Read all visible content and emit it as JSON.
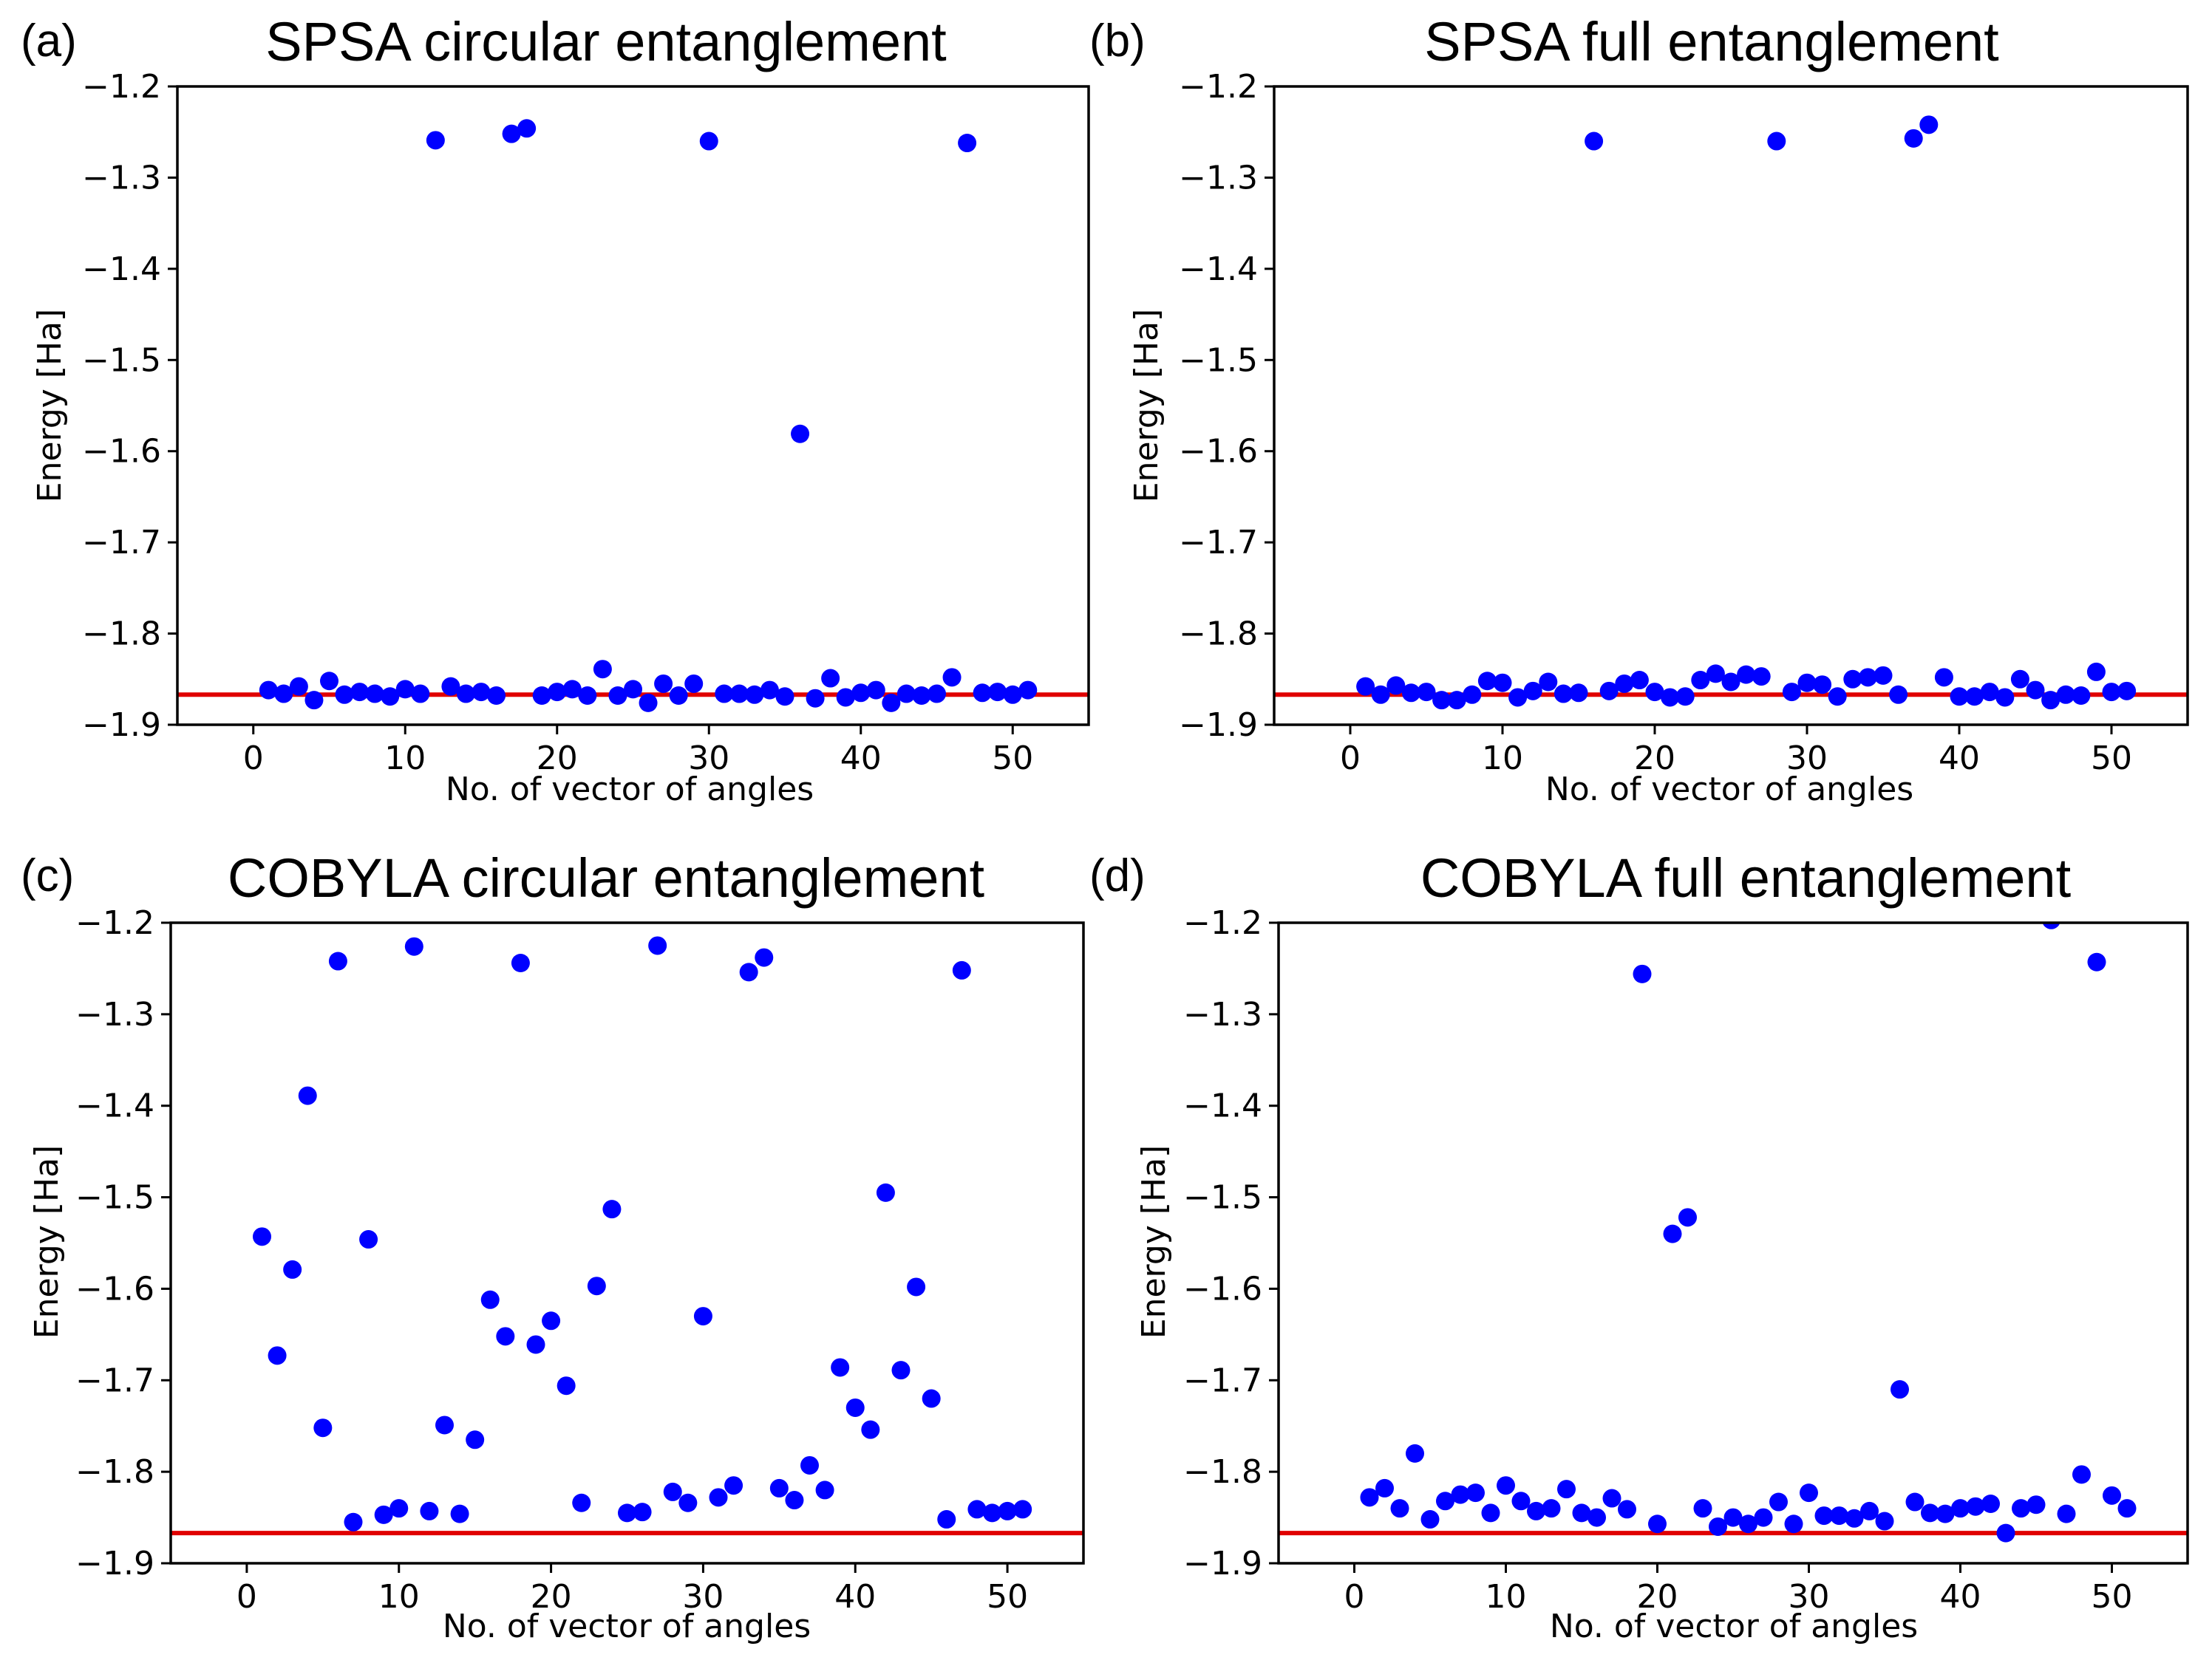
{
  "colors": {
    "points": "#0000ff",
    "reference_line": "#e00000",
    "axes": "#000000"
  },
  "chart_data": [
    {
      "type": "scatter",
      "panel_label": "(a)",
      "title": "SPSA circular entanglement",
      "xlabel": "No. of vector of angles",
      "ylabel": "Energy [Ha]",
      "xlim": [
        -5,
        55
      ],
      "ylim": [
        -1.9,
        -1.2
      ],
      "xticks": [
        0,
        10,
        20,
        30,
        40,
        50
      ],
      "yticks": [
        -1.9,
        -1.8,
        -1.7,
        -1.6,
        -1.5,
        -1.4,
        -1.3,
        -1.2
      ],
      "reference_line": -1.867,
      "x": [
        1,
        2,
        3,
        4,
        5,
        6,
        7,
        8,
        9,
        10,
        11,
        12,
        13,
        14,
        15,
        16,
        17,
        18,
        19,
        20,
        21,
        22,
        23,
        24,
        25,
        26,
        27,
        28,
        29,
        30,
        31,
        32,
        33,
        34,
        35,
        36,
        37,
        38,
        39,
        40,
        41,
        42,
        43,
        44,
        45,
        46,
        47,
        48,
        49,
        50,
        51
      ],
      "y": [
        -1.862,
        -1.866,
        -1.858,
        -1.873,
        -1.852,
        -1.867,
        -1.864,
        -1.866,
        -1.869,
        -1.861,
        -1.866,
        -1.259,
        -1.858,
        -1.866,
        -1.864,
        -1.868,
        -1.252,
        -1.246,
        -1.868,
        -1.864,
        -1.861,
        -1.868,
        -1.839,
        -1.868,
        -1.861,
        -1.876,
        -1.855,
        -1.868,
        -1.855,
        -1.26,
        -1.866,
        -1.866,
        -1.867,
        -1.862,
        -1.869,
        -1.581,
        -1.871,
        -1.849,
        -1.87,
        -1.865,
        -1.862,
        -1.876,
        -1.866,
        -1.868,
        -1.866,
        -1.848,
        -1.262,
        -1.865,
        -1.864,
        -1.867,
        -1.862
      ]
    },
    {
      "type": "scatter",
      "panel_label": "(b)",
      "title": "SPSA full entanglement",
      "xlabel": "No. of vector of angles",
      "ylabel": "Energy [Ha]",
      "xlim": [
        -5,
        55
      ],
      "ylim": [
        -1.9,
        -1.2
      ],
      "xticks": [
        0,
        10,
        20,
        30,
        40,
        50
      ],
      "yticks": [
        -1.9,
        -1.8,
        -1.7,
        -1.6,
        -1.5,
        -1.4,
        -1.3,
        -1.2
      ],
      "reference_line": -1.867,
      "x": [
        1,
        2,
        3,
        4,
        5,
        6,
        7,
        8,
        9,
        10,
        11,
        12,
        13,
        14,
        15,
        16,
        17,
        18,
        19,
        20,
        21,
        22,
        23,
        24,
        25,
        26,
        27,
        28,
        29,
        30,
        31,
        32,
        33,
        34,
        35,
        36,
        37,
        38,
        39,
        40,
        41,
        42,
        43,
        44,
        45,
        46,
        47,
        48,
        49,
        50,
        51
      ],
      "y": [
        -1.858,
        -1.867,
        -1.857,
        -1.865,
        -1.864,
        -1.873,
        -1.873,
        -1.867,
        -1.852,
        -1.854,
        -1.87,
        -1.863,
        -1.853,
        -1.866,
        -1.865,
        -1.26,
        -1.863,
        -1.855,
        -1.851,
        -1.864,
        -1.87,
        -1.869,
        -1.851,
        -1.844,
        -1.853,
        -1.845,
        -1.847,
        -1.26,
        -1.864,
        -1.854,
        -1.856,
        -1.869,
        -1.85,
        -1.848,
        -1.846,
        -1.867,
        -1.257,
        -1.242,
        -1.848,
        -1.869,
        -1.869,
        -1.864,
        -1.87,
        -1.85,
        -1.862,
        -1.873,
        -1.867,
        -1.868,
        -1.842,
        -1.864,
        -1.863
      ]
    },
    {
      "type": "scatter",
      "panel_label": "(c)",
      "title": "COBYLA circular entanglement",
      "xlabel": "No. of vector of angles",
      "ylabel": "Energy [Ha]",
      "xlim": [
        -5,
        55
      ],
      "ylim": [
        -1.9,
        -1.2
      ],
      "xticks": [
        0,
        10,
        20,
        30,
        40,
        50
      ],
      "yticks": [
        -1.9,
        -1.8,
        -1.7,
        -1.6,
        -1.5,
        -1.4,
        -1.3,
        -1.2
      ],
      "reference_line": -1.867,
      "x": [
        1,
        2,
        3,
        4,
        5,
        6,
        7,
        8,
        9,
        10,
        11,
        12,
        13,
        14,
        15,
        16,
        17,
        18,
        19,
        20,
        21,
        22,
        23,
        24,
        25,
        26,
        27,
        28,
        29,
        30,
        31,
        32,
        33,
        34,
        35,
        36,
        37,
        38,
        39,
        40,
        41,
        42,
        43,
        44,
        45,
        46,
        47,
        48,
        49,
        50,
        51
      ],
      "y": [
        -1.543,
        -1.673,
        -1.579,
        -1.389,
        -1.752,
        -1.242,
        -1.855,
        -1.546,
        -1.847,
        -1.84,
        -1.226,
        -1.843,
        -1.749,
        -1.846,
        -1.765,
        -1.612,
        -1.652,
        -1.244,
        -1.661,
        -1.635,
        -1.706,
        -1.834,
        -1.597,
        -1.513,
        -1.845,
        -1.844,
        -1.225,
        -1.822,
        -1.834,
        -1.63,
        -1.828,
        -1.815,
        -1.254,
        -1.238,
        -1.818,
        -1.831,
        -1.793,
        -1.82,
        -1.686,
        -1.73,
        -1.754,
        -1.495,
        -1.689,
        -1.598,
        -1.72,
        -1.852,
        -1.252,
        -1.841,
        -1.845,
        -1.843,
        -1.841
      ]
    },
    {
      "type": "scatter",
      "panel_label": "(d)",
      "title": "COBYLA full entanglement",
      "xlabel": "No. of vector of angles",
      "ylabel": "Energy [Ha]",
      "xlim": [
        -5,
        55
      ],
      "ylim": [
        -1.9,
        -1.2
      ],
      "xticks": [
        0,
        10,
        20,
        30,
        40,
        50
      ],
      "yticks": [
        -1.9,
        -1.8,
        -1.7,
        -1.6,
        -1.5,
        -1.4,
        -1.3,
        -1.2
      ],
      "reference_line": -1.867,
      "x": [
        1,
        2,
        3,
        4,
        5,
        6,
        7,
        8,
        9,
        10,
        11,
        12,
        13,
        14,
        15,
        16,
        17,
        18,
        19,
        20,
        21,
        22,
        23,
        24,
        25,
        26,
        27,
        28,
        29,
        30,
        31,
        32,
        33,
        34,
        35,
        36,
        37,
        38,
        39,
        40,
        41,
        42,
        43,
        44,
        45,
        46,
        47,
        48,
        49,
        50,
        51
      ],
      "y": [
        -1.828,
        -1.818,
        -1.84,
        -1.78,
        -1.852,
        -1.832,
        -1.825,
        -1.823,
        -1.845,
        -1.815,
        -1.832,
        -1.843,
        -1.84,
        -1.819,
        -1.845,
        -1.85,
        -1.829,
        -1.841,
        -1.256,
        -1.857,
        -1.54,
        -1.522,
        -1.84,
        -1.86,
        -1.85,
        -1.857,
        -1.85,
        -1.833,
        -1.857,
        -1.823,
        -1.848,
        -1.848,
        -1.851,
        -1.843,
        -1.854,
        -1.71,
        -1.833,
        -1.845,
        -1.846,
        -1.84,
        -1.838,
        -1.835,
        -1.867,
        -1.84,
        -1.836,
        -1.197,
        -1.846,
        -1.803,
        -1.243,
        -1.826,
        -1.84
      ]
    }
  ]
}
